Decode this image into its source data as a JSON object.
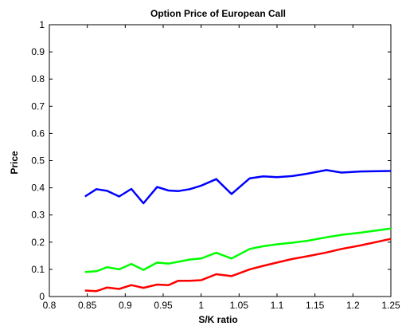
{
  "chart_data": {
    "type": "line",
    "title": "Option Price of European Call",
    "xlabel": "S/K ratio",
    "ylabel": "Price",
    "xlim": [
      0.8,
      1.25
    ],
    "ylim": [
      0,
      1
    ],
    "x_ticks": [
      "0.8",
      "0.85",
      "0.9",
      "0.95",
      "1",
      "1.05",
      "1.1",
      "1.15",
      "1.2",
      "1.25"
    ],
    "y_ticks": [
      "0",
      "0.1",
      "0.2",
      "0.3",
      "0.4",
      "0.5",
      "0.6",
      "0.7",
      "0.8",
      "0.9",
      "1"
    ],
    "grid": false,
    "series": [
      {
        "color": "#0000ff",
        "x": [
          0.847,
          0.862,
          0.876,
          0.892,
          0.908,
          0.924,
          0.942,
          0.957,
          0.97,
          0.985,
          1.0,
          1.02,
          1.04,
          1.064,
          1.082,
          1.1,
          1.12,
          1.14,
          1.165,
          1.185,
          1.21,
          1.25
        ],
        "values": [
          0.368,
          0.395,
          0.389,
          0.368,
          0.396,
          0.343,
          0.403,
          0.39,
          0.388,
          0.395,
          0.408,
          0.432,
          0.377,
          0.435,
          0.442,
          0.439,
          0.443,
          0.452,
          0.465,
          0.456,
          0.46,
          0.462
        ]
      },
      {
        "color": "#00ff00",
        "x": [
          0.847,
          0.862,
          0.876,
          0.892,
          0.908,
          0.924,
          0.942,
          0.957,
          0.97,
          0.985,
          1.0,
          1.02,
          1.04,
          1.064,
          1.082,
          1.1,
          1.12,
          1.14,
          1.165,
          1.185,
          1.21,
          1.25
        ],
        "values": [
          0.09,
          0.093,
          0.108,
          0.1,
          0.12,
          0.098,
          0.125,
          0.121,
          0.128,
          0.136,
          0.14,
          0.161,
          0.14,
          0.175,
          0.185,
          0.192,
          0.198,
          0.205,
          0.218,
          0.227,
          0.235,
          0.25
        ]
      },
      {
        "color": "#ff0000",
        "x": [
          0.847,
          0.862,
          0.876,
          0.892,
          0.908,
          0.924,
          0.942,
          0.957,
          0.97,
          0.985,
          1.0,
          1.02,
          1.04,
          1.064,
          1.082,
          1.1,
          1.12,
          1.14,
          1.165,
          1.185,
          1.21,
          1.25
        ],
        "values": [
          0.022,
          0.02,
          0.033,
          0.028,
          0.042,
          0.032,
          0.044,
          0.042,
          0.058,
          0.058,
          0.06,
          0.082,
          0.075,
          0.1,
          0.113,
          0.125,
          0.138,
          0.148,
          0.162,
          0.175,
          0.188,
          0.212
        ]
      }
    ]
  }
}
